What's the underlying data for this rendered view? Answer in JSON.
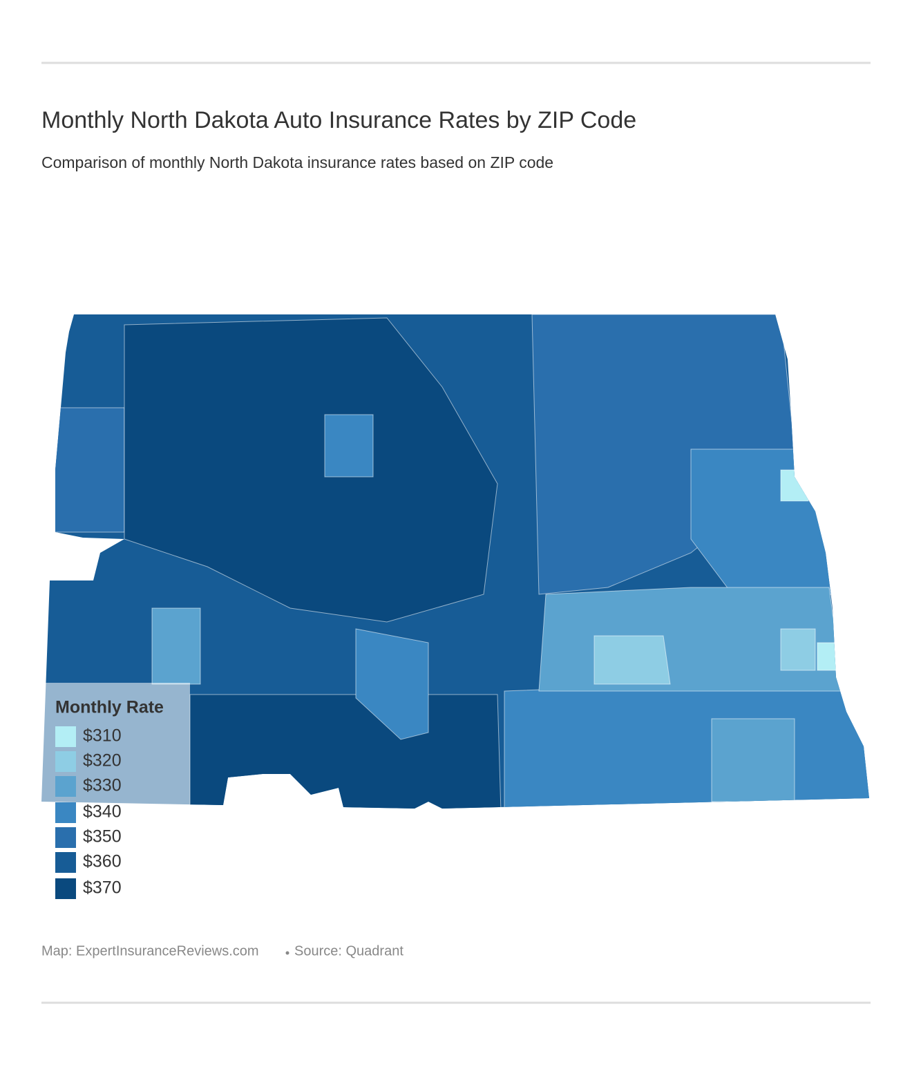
{
  "header": {
    "title": "Monthly North Dakota Auto Insurance Rates by ZIP Code",
    "subtitle": "Comparison of monthly North Dakota insurance rates based on ZIP code"
  },
  "legend": {
    "title": "Monthly Rate",
    "items": [
      {
        "label": "$310",
        "color": "#b3eef5"
      },
      {
        "label": "$320",
        "color": "#8ecde4"
      },
      {
        "label": "$330",
        "color": "#5ba3cf"
      },
      {
        "label": "$340",
        "color": "#3a87c2"
      },
      {
        "label": "$350",
        "color": "#2a6fad"
      },
      {
        "label": "$360",
        "color": "#175c96"
      },
      {
        "label": "$370",
        "color": "#0a497e"
      }
    ]
  },
  "footer": {
    "credit": "Map: ExpertInsuranceReviews.com",
    "source": "Source: Quadrant"
  }
}
